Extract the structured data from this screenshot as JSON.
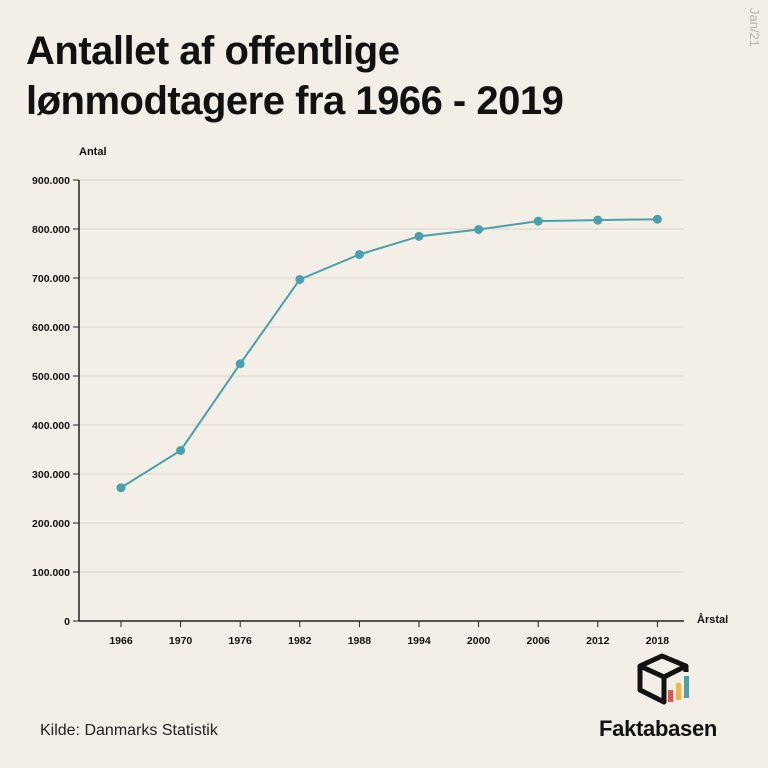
{
  "header": {
    "title_line1": "Antallet af offentlige",
    "title_line2": "lønmodtagere fra 1966 - 2019",
    "date_stamp": "Jan/21"
  },
  "footer": {
    "source": "Kilde: Danmarks Statistik",
    "brand": "Faktabasen"
  },
  "colors": {
    "line": "#4aa0ac",
    "axis": "#222222",
    "grid": "#d9d4cb",
    "background": "#f3efe7",
    "logo_bars": [
      "#e8534a",
      "#f4b642",
      "#4aa0ac"
    ]
  },
  "chart_data": {
    "type": "line",
    "ylabel": "Antal",
    "xlabel": "Årstal",
    "ylim": [
      0,
      900000
    ],
    "yticks": [
      {
        "value": 0,
        "label": "0"
      },
      {
        "value": 100000,
        "label": "100.000"
      },
      {
        "value": 200000,
        "label": "200.000"
      },
      {
        "value": 300000,
        "label": "300.000"
      },
      {
        "value": 400000,
        "label": "400.000"
      },
      {
        "value": 500000,
        "label": "500.000"
      },
      {
        "value": 600000,
        "label": "600.000"
      },
      {
        "value": 700000,
        "label": "700.000"
      },
      {
        "value": 800000,
        "label": "800.000"
      },
      {
        "value": 900000,
        "label": "900.000"
      }
    ],
    "categories": [
      "1966",
      "1970",
      "1976",
      "1982",
      "1988",
      "1994",
      "2000",
      "2006",
      "2012",
      "2018"
    ],
    "values": [
      272000,
      348000,
      525000,
      697000,
      748000,
      785000,
      799000,
      816000,
      818000,
      820000
    ],
    "grid": true,
    "legend": "none"
  }
}
